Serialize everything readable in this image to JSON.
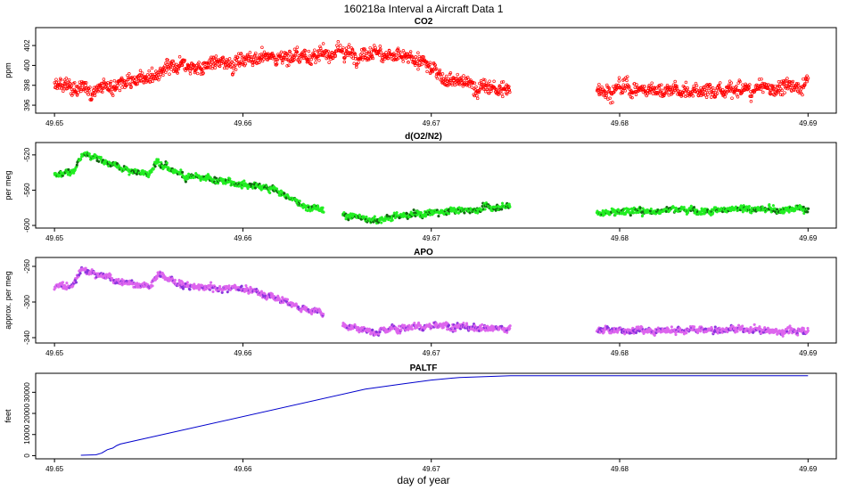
{
  "figure": {
    "title": "160218a   Interval a Aircraft Data 1",
    "xlabel": "day of year"
  },
  "colors": {
    "co2": "#ff0000",
    "o2n2_light": "#22ee22",
    "o2n2_dark": "#116611",
    "apo_light": "#dd66ee",
    "apo_dark": "#8833dd",
    "paltf": "#0000cc"
  },
  "chart_data": [
    {
      "type": "scatter",
      "title": "CO2",
      "ylabel": "ppm",
      "xlim": [
        49.649,
        49.6915
      ],
      "ylim": [
        395.2,
        403.8
      ],
      "xticks": [
        49.65,
        49.66,
        49.67,
        49.68,
        49.69
      ],
      "xtick_labels": [
        "49.65",
        "49.66",
        "49.67",
        "49.68",
        "49.69"
      ],
      "yticks": [
        396,
        398,
        400,
        402
      ],
      "ytick_labels": [
        "396",
        "398",
        "400",
        "402"
      ],
      "segments": [
        [
          49.65,
          49.6742
        ],
        [
          49.6788,
          49.69
        ]
      ],
      "trend": {
        "x": [
          49.65,
          49.652,
          49.6545,
          49.657,
          49.66,
          49.663,
          49.667,
          49.6695,
          49.671,
          49.6742,
          49.6788,
          49.682,
          49.685,
          49.688,
          49.69
        ],
        "y": [
          397.9,
          397.6,
          398.8,
          399.8,
          400.6,
          401.0,
          401.4,
          400.3,
          398.6,
          397.3,
          397.8,
          397.6,
          397.3,
          397.6,
          398.3
        ]
      },
      "noise": 0.8,
      "colors": [
        "#ff0000"
      ]
    },
    {
      "type": "scatter",
      "title": "d(O2/N2)",
      "ylabel": "per meg",
      "xlim": [
        49.649,
        49.6915
      ],
      "ylim": [
        -603,
        -506
      ],
      "xticks": [
        49.65,
        49.66,
        49.67,
        49.68,
        49.69
      ],
      "xtick_labels": [
        "49.65",
        "49.66",
        "49.67",
        "49.68",
        "49.69"
      ],
      "yticks": [
        -600,
        -560,
        -520
      ],
      "ytick_labels": [
        "-600",
        "-560",
        "-520"
      ],
      "segments": [
        [
          49.65,
          49.6643
        ],
        [
          49.6653,
          49.6742
        ],
        [
          49.6788,
          49.69
        ]
      ],
      "trend": {
        "x": [
          49.65,
          49.651,
          49.6515,
          49.653,
          49.655,
          49.6555,
          49.657,
          49.66,
          49.6615,
          49.663,
          49.6643,
          49.6653,
          49.667,
          49.669,
          49.6742,
          49.6788,
          49.684,
          49.69
        ],
        "y": [
          -542,
          -540,
          -518,
          -530,
          -542,
          -527,
          -545,
          -553,
          -558,
          -575,
          -583,
          -588,
          -594,
          -588,
          -578,
          -585,
          -582,
          -581
        ]
      },
      "noise": 4,
      "colors": [
        "#22ee22",
        "#116611"
      ]
    },
    {
      "type": "scatter",
      "title": "APO",
      "ylabel": "approx. per meg",
      "xlim": [
        49.649,
        49.6915
      ],
      "ylim": [
        -346,
        -250
      ],
      "xticks": [
        49.65,
        49.66,
        49.67,
        49.68,
        49.69
      ],
      "xtick_labels": [
        "49.65",
        "49.66",
        "49.67",
        "49.68",
        "49.69"
      ],
      "yticks": [
        -340,
        -300,
        -260
      ],
      "ytick_labels": [
        "-340",
        "-300",
        "-260"
      ],
      "segments": [
        [
          49.65,
          49.6643
        ],
        [
          49.6653,
          49.6742
        ],
        [
          49.6788,
          49.69
        ]
      ],
      "trend": {
        "x": [
          49.65,
          49.651,
          49.6515,
          49.653,
          49.655,
          49.6555,
          49.657,
          49.66,
          49.6615,
          49.663,
          49.6643,
          49.6653,
          49.667,
          49.669,
          49.6742,
          49.6788,
          49.684,
          49.69
        ],
        "y": [
          -283,
          -280,
          -262,
          -275,
          -283,
          -268,
          -283,
          -285,
          -293,
          -305,
          -312,
          -325,
          -333,
          -327,
          -330,
          -332,
          -331,
          -332
        ]
      },
      "noise": 4,
      "colors": [
        "#dd66ee",
        "#8833dd"
      ]
    },
    {
      "type": "line",
      "title": "PALTF",
      "ylabel": "feet",
      "xlim": [
        49.649,
        49.6915
      ],
      "ylim": [
        -1500,
        39000
      ],
      "xticks": [
        49.65,
        49.66,
        49.67,
        49.68,
        49.69
      ],
      "xtick_labels": [
        "49.65",
        "49.66",
        "49.67",
        "49.68",
        "49.69"
      ],
      "yticks": [
        0,
        10000,
        20000,
        30000
      ],
      "ytick_labels": [
        "0",
        "10000",
        "20000",
        "30000"
      ],
      "x": [
        49.6514,
        49.6522,
        49.6525,
        49.6528,
        49.6531,
        49.6533,
        49.6535,
        49.6665,
        49.6685,
        49.67,
        49.6715,
        49.6742,
        49.68,
        49.69
      ],
      "y": [
        200,
        400,
        1200,
        2800,
        3600,
        4800,
        5500,
        31500,
        34000,
        35800,
        37000,
        37800,
        37800,
        37800
      ],
      "color": "#0000cc"
    }
  ]
}
